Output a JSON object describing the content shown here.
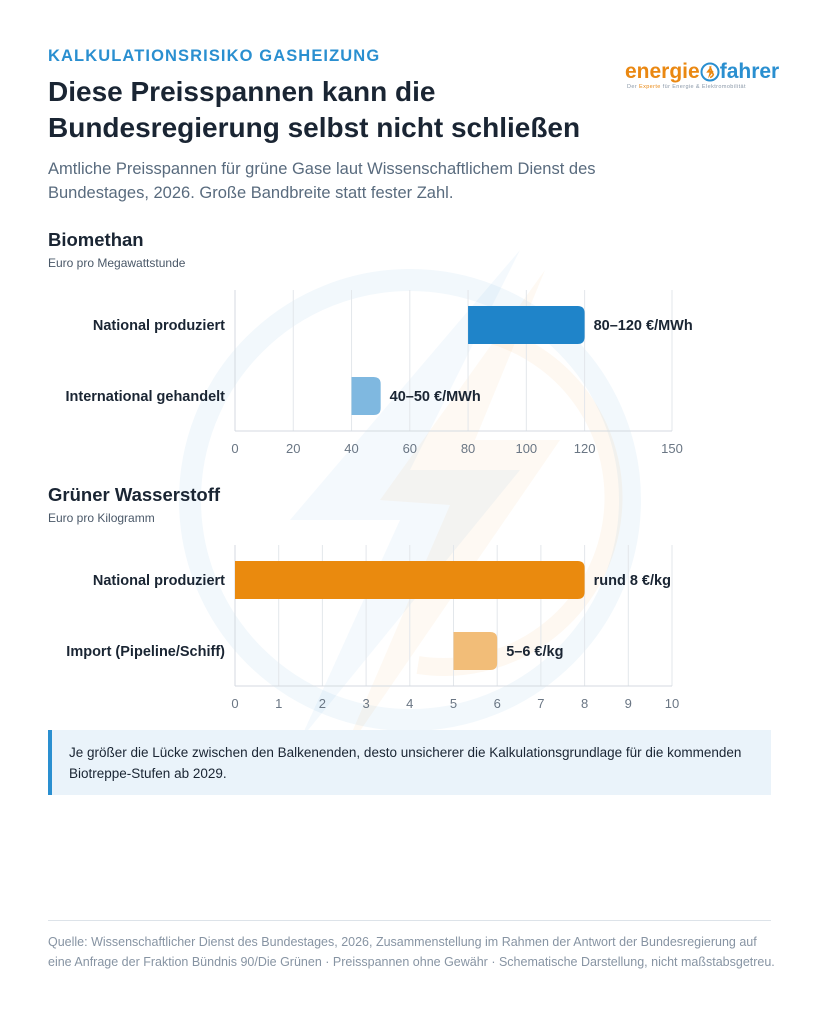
{
  "header": {
    "eyebrow": "KALKULATIONSRISIKO GASHEIZUNG",
    "title": "Diese Preisspannen kann die Bundesregierung selbst nicht schließen",
    "subtitle": "Amtliche Preisspannen für grüne Gase laut Wissenschaftlichem Dienst des Bundestages, 2026. Große Bandbreite statt fester Zahl."
  },
  "logo": {
    "word_left": "energie",
    "word_right": "fahrer",
    "tagline_prefix": "Der ",
    "tagline_brand": "Experte",
    "tagline_rest": " für Energie & Elektromobilität",
    "icon": "lightning-bolt-icon"
  },
  "colors": {
    "accent_blue": "#2a8fd0",
    "bar_blue": "#1f84c9",
    "bar_blue_light": "#7fb8e0",
    "bar_orange": "#ea8a0e",
    "bar_orange_light": "#f2bd78"
  },
  "chart_data": [
    {
      "type": "bar",
      "orientation": "horizontal",
      "title": "Biomethan",
      "unit_label": "Euro pro Megawattstunde",
      "xlim": [
        0,
        150
      ],
      "xticks": [
        0,
        20,
        40,
        60,
        80,
        100,
        120,
        150
      ],
      "grid": true,
      "bars": [
        {
          "category": "National produziert",
          "start": 80,
          "end": 120,
          "label": "80–120 €/MWh",
          "color": "#1f84c9"
        },
        {
          "category": "International gehandelt",
          "start": 40,
          "end": 50,
          "label": "40–50 €/MWh",
          "color": "#7fb8e0"
        }
      ]
    },
    {
      "type": "bar",
      "orientation": "horizontal",
      "title": "Grüner Wasserstoff",
      "unit_label": "Euro pro Kilogramm",
      "xlim": [
        0,
        10
      ],
      "xticks": [
        0,
        1,
        2,
        3,
        4,
        5,
        6,
        7,
        8,
        9,
        10
      ],
      "grid": true,
      "bars": [
        {
          "category": "National produziert",
          "start": 0,
          "end": 8,
          "label": "rund 8 €/kg",
          "color": "#ea8a0e"
        },
        {
          "category": "Import (Pipeline/Schiff)",
          "start": 5,
          "end": 6,
          "label": "5–6 €/kg",
          "color": "#f2bd78"
        }
      ]
    }
  ],
  "note": "Je größer die Lücke zwischen den Balkenenden, desto unsicherer die Kalkulationsgrundlage für die kommenden Biotreppe-Stufen ab 2029.",
  "source": "Quelle: Wissenschaftlicher Dienst des Bundestages, 2026, Zusammenstellung im Rahmen der Antwort der Bundesregierung auf eine Anfrage der Fraktion Bündnis 90/Die Grünen · Preisspannen ohne Gewähr · Schematische Darstellung, nicht maßstabsgetreu."
}
